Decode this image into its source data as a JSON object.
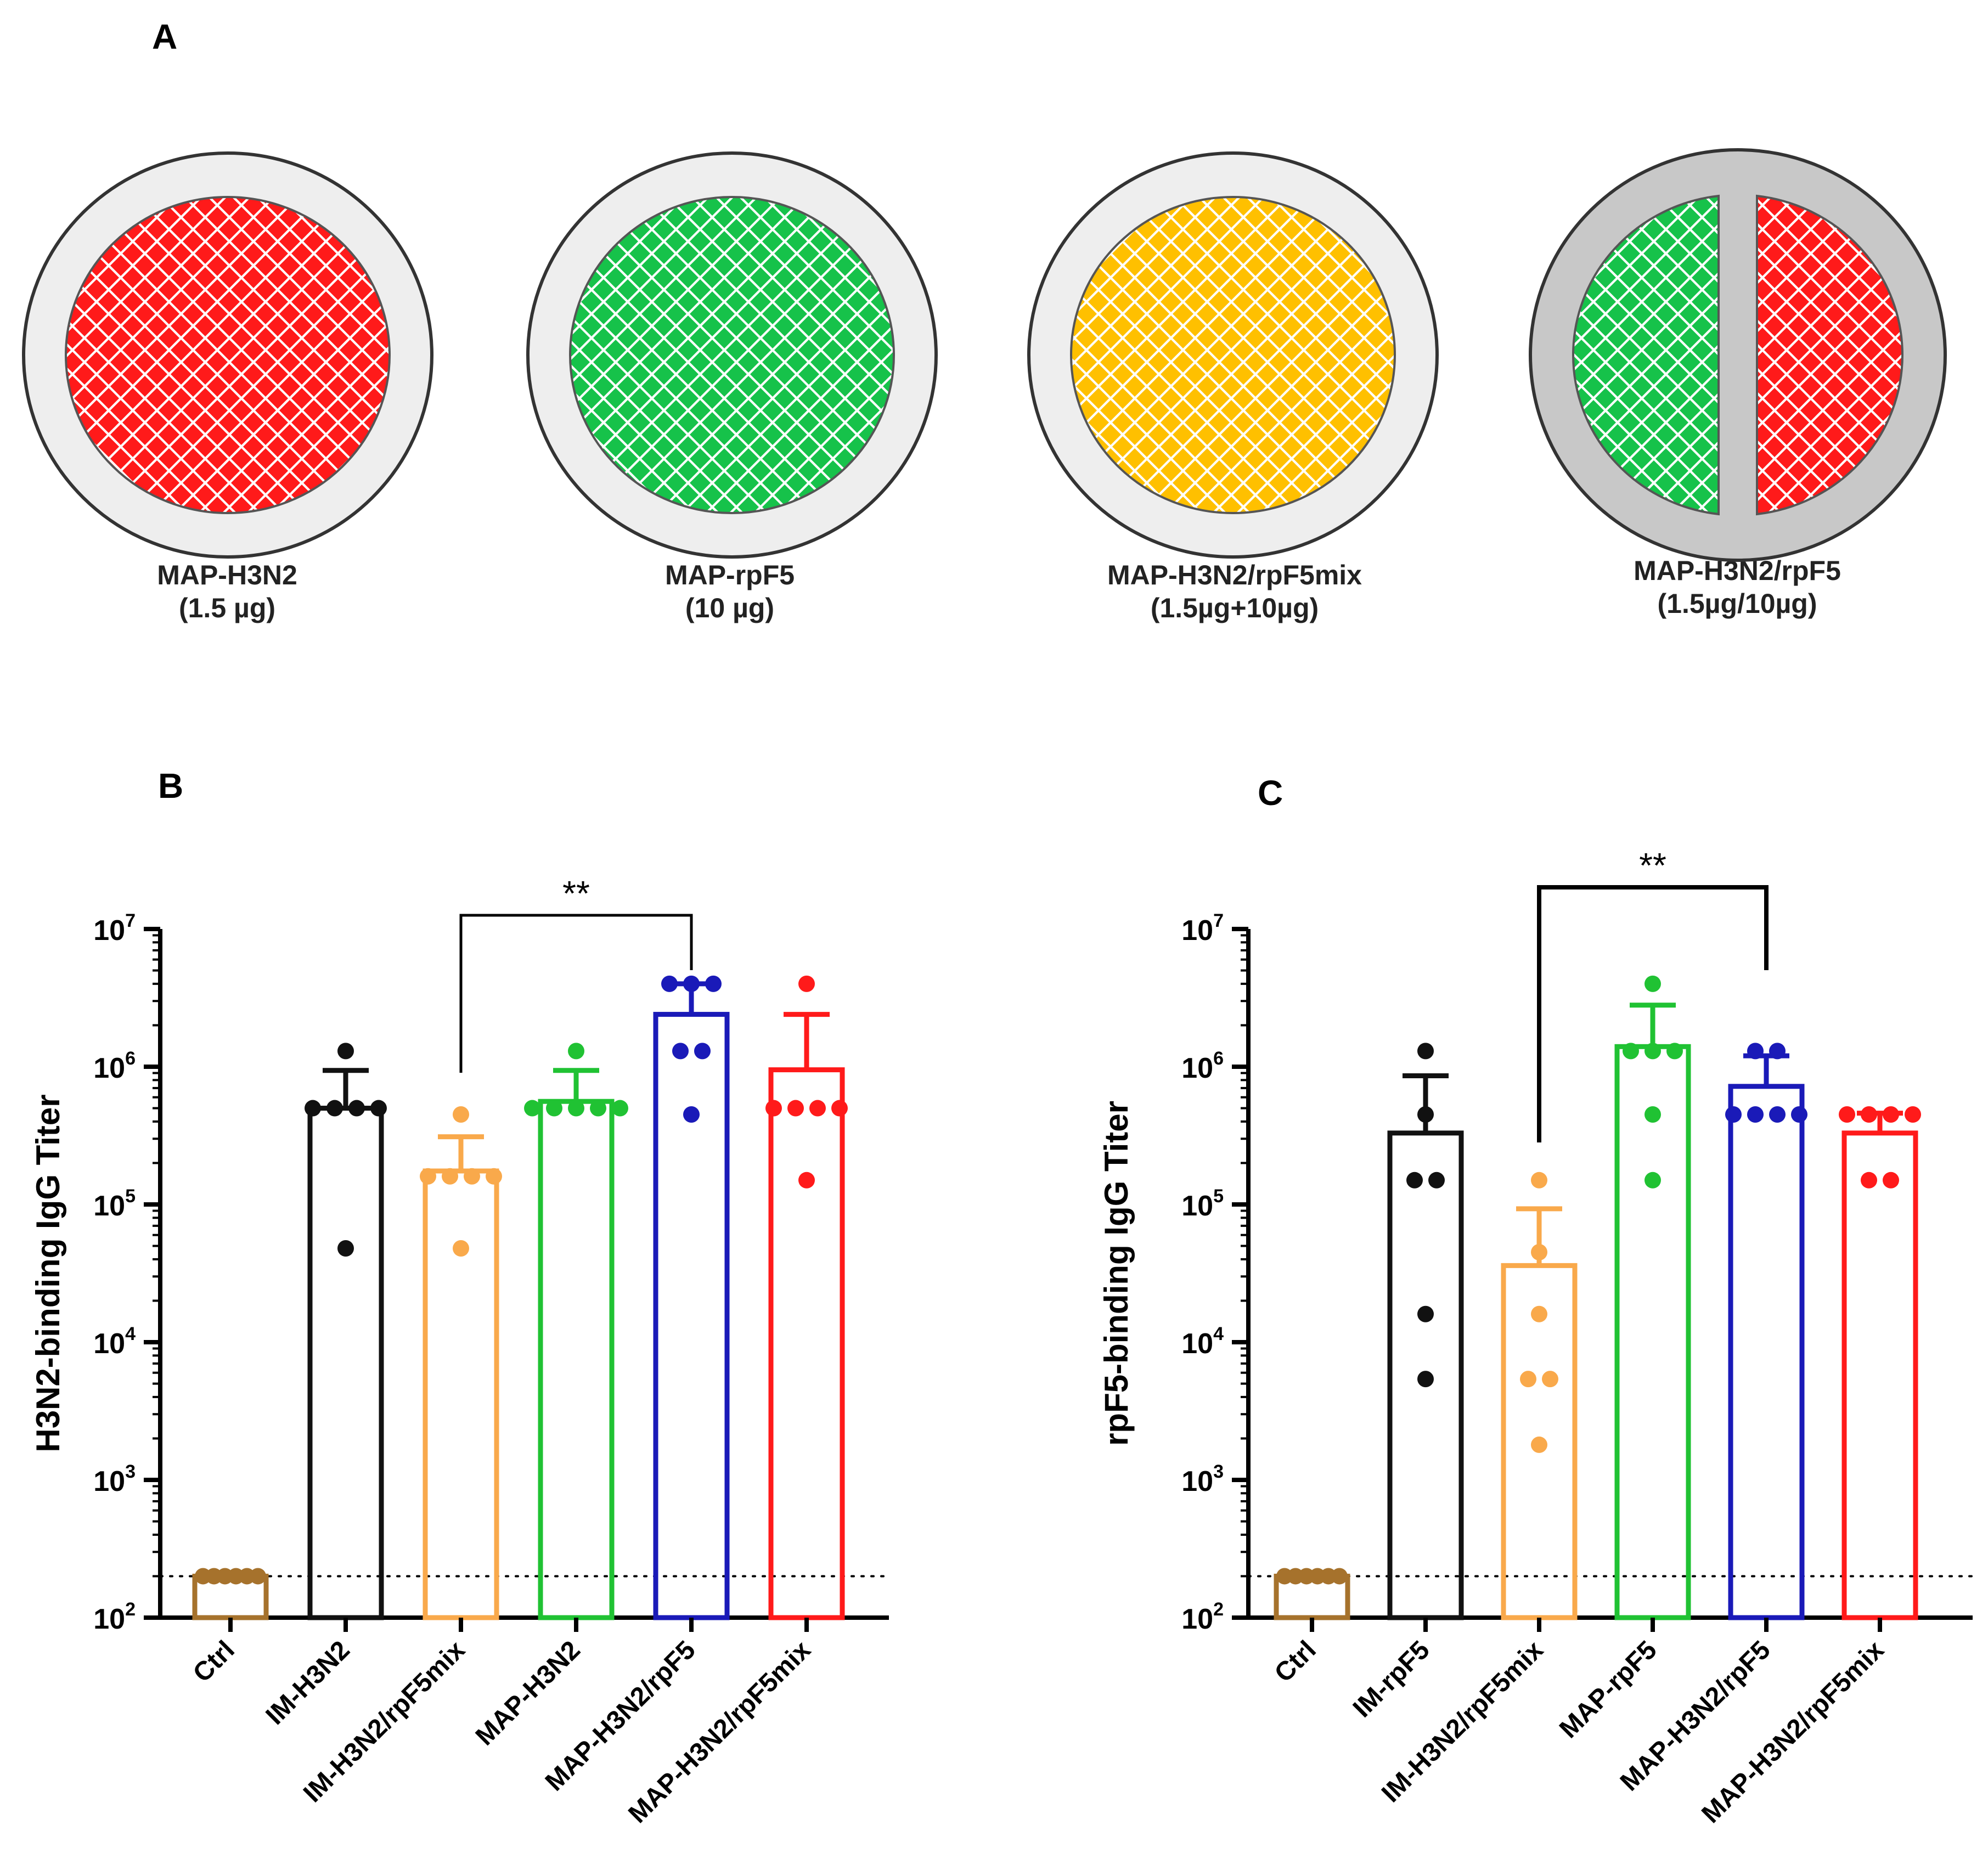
{
  "panels": {
    "a": {
      "letter": "A"
    },
    "b": {
      "letter": "B"
    },
    "c": {
      "letter": "C"
    }
  },
  "colors": {
    "red": "#ff1a1a",
    "green": "#16c24a",
    "yellow": "#ffc000",
    "ring_light": "#eeeeee",
    "ring_dark": "#c8c8c8",
    "ctrl": "#a6722c",
    "black": "#111111",
    "orange": "#f9a94b",
    "green_bar": "#20c233",
    "blue": "#1a1ab8",
    "red_bar": "#ff1a1a"
  },
  "patches": [
    {
      "name": "MAP-H3N2",
      "dose": "(1.5 µg)",
      "fill": "red"
    },
    {
      "name": "MAP-rpF5",
      "dose": "(10 µg)",
      "fill": "green"
    },
    {
      "name": "MAP-H3N2/rpF5mix",
      "dose": "(1.5µg+10µg)",
      "fill": "yellow"
    },
    {
      "name": "MAP-H3N2/rpF5",
      "dose": "(1.5µg/10µg)",
      "fill": "split"
    }
  ],
  "chart_data": [
    {
      "panel": "B",
      "type": "bar",
      "ylabel": "H3N2-binding IgG Titer",
      "yscale": "log",
      "ylim": [
        100,
        10000000
      ],
      "yticks": [
        {
          "exp": 2,
          "base": "10",
          "sup": "2"
        },
        {
          "exp": 3,
          "base": "10",
          "sup": "3"
        },
        {
          "exp": 4,
          "base": "10",
          "sup": "4"
        },
        {
          "exp": 5,
          "base": "10",
          "sup": "5"
        },
        {
          "exp": 6,
          "base": "10",
          "sup": "6"
        },
        {
          "exp": 7,
          "base": "10",
          "sup": "7"
        }
      ],
      "detection_limit": 200,
      "categories": [
        "Ctrl",
        "IM-H3N2",
        "IM-H3N2/rpF5mix",
        "MAP-H3N2",
        "MAP-H3N2/rpF5",
        "MAP-H3N2/rpF5mix"
      ],
      "bar_colors": [
        "#a6722c",
        "#111111",
        "#f9a94b",
        "#20c233",
        "#1a1ab8",
        "#ff1a1a"
      ],
      "means": [
        200,
        500000,
        175000,
        560000,
        2400000,
        950000
      ],
      "error_upper": [
        200,
        940000,
        310000,
        940000,
        4000000,
        2400000
      ],
      "points": [
        [
          200,
          200,
          200,
          200,
          200,
          200
        ],
        [
          1300000,
          500000,
          500000,
          500000,
          500000,
          48000
        ],
        [
          450000,
          160000,
          160000,
          160000,
          48000,
          160000
        ],
        [
          1300000,
          500000,
          500000,
          500000,
          500000,
          500000
        ],
        [
          4000000,
          4000000,
          4000000,
          1300000,
          1300000,
          450000
        ],
        [
          4000000,
          500000,
          500000,
          500000,
          500000,
          150000
        ]
      ],
      "comparison": {
        "from": 2,
        "to": 4,
        "label": "**"
      }
    },
    {
      "panel": "C",
      "type": "bar",
      "ylabel": "rpF5-binding IgG Titer",
      "yscale": "log",
      "ylim": [
        100,
        10000000
      ],
      "yticks": [
        {
          "exp": 2,
          "base": "10",
          "sup": "2"
        },
        {
          "exp": 3,
          "base": "10",
          "sup": "3"
        },
        {
          "exp": 4,
          "base": "10",
          "sup": "4"
        },
        {
          "exp": 5,
          "base": "10",
          "sup": "5"
        },
        {
          "exp": 6,
          "base": "10",
          "sup": "6"
        },
        {
          "exp": 7,
          "base": "10",
          "sup": "7"
        }
      ],
      "detection_limit": 200,
      "categories": [
        "Ctrl",
        "IM-rpF5",
        "IM-H3N2/rpF5mix",
        "MAP-rpF5",
        "MAP-H3N2/rpF5",
        "MAP-H3N2/rpF5mix"
      ],
      "bar_colors": [
        "#a6722c",
        "#111111",
        "#f9a94b",
        "#20c233",
        "#1a1ab8",
        "#ff1a1a"
      ],
      "means": [
        200,
        330000,
        36000,
        1400000,
        720000,
        330000
      ],
      "error_upper": [
        200,
        860000,
        93000,
        2800000,
        1200000,
        460000
      ],
      "points": [
        [
          200,
          200,
          200,
          200,
          200,
          200
        ],
        [
          1300000,
          450000,
          150000,
          150000,
          16000,
          5400
        ],
        [
          150000,
          45000,
          16000,
          5400,
          5400,
          1800
        ],
        [
          4000000,
          1300000,
          1300000,
          1300000,
          450000,
          150000
        ],
        [
          1300000,
          1300000,
          450000,
          450000,
          450000,
          450000
        ],
        [
          450000,
          450000,
          450000,
          450000,
          150000,
          150000
        ]
      ],
      "comparison": {
        "from": 2,
        "to": 4,
        "label": "**"
      }
    }
  ]
}
